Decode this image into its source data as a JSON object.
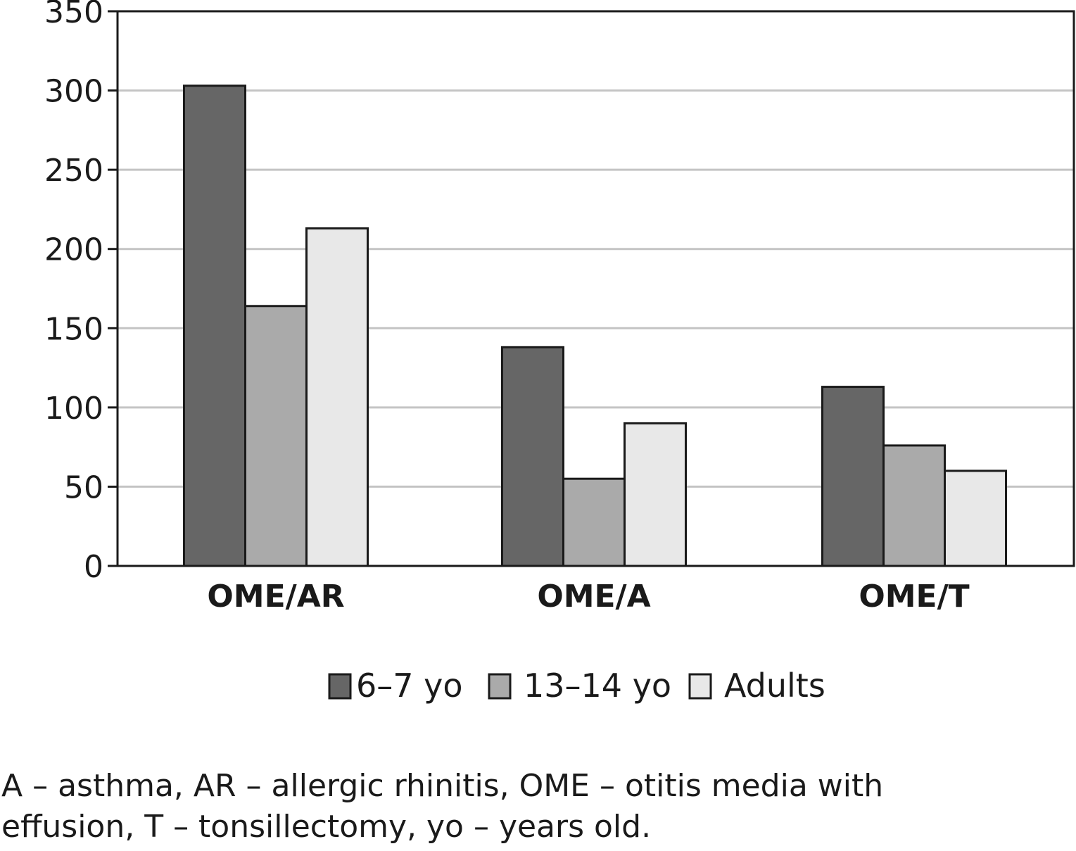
{
  "chart_data": {
    "type": "bar",
    "categories": [
      "OME/AR",
      "OME/A",
      "OME/T"
    ],
    "series": [
      {
        "name": "6–7 yo",
        "values": [
          303,
          138,
          113
        ],
        "color": "#666666"
      },
      {
        "name": "13–14 yo",
        "values": [
          164,
          55,
          76
        ],
        "color": "#aaaaaa"
      },
      {
        "name": "Adults",
        "values": [
          213,
          90,
          60
        ],
        "color": "#e8e8e8"
      }
    ],
    "ylim": [
      0,
      350
    ],
    "yticks": [
      0,
      50,
      100,
      150,
      200,
      250,
      300,
      350
    ],
    "grid": true,
    "legend_position": "bottom",
    "title": "",
    "xlabel": "",
    "ylabel": ""
  },
  "caption": {
    "line1": "A – asthma, AR – allergic rhinitis, OME – otitis media with",
    "line2": "effusion, T – tonsillectomy, yo – years old."
  }
}
